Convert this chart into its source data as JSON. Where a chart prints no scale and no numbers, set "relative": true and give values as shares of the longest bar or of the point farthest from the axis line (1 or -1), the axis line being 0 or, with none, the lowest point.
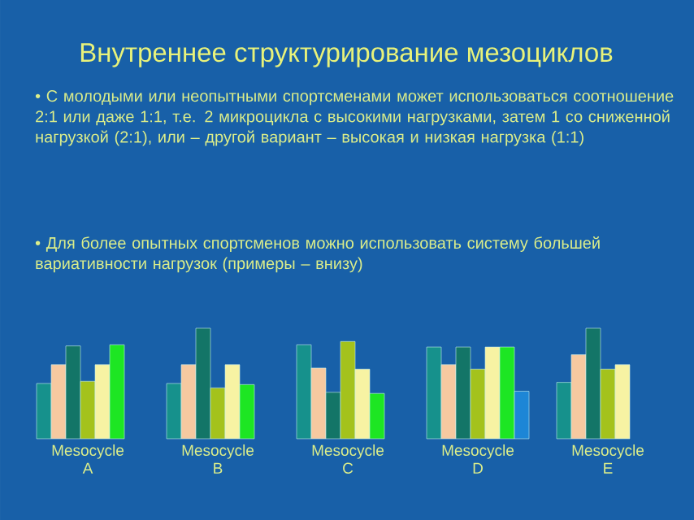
{
  "chart_data": {
    "type": "bar",
    "title": "Внутреннее структурирование мезоциклов",
    "annotations": [
      "• С молодыми или неопытными спортсменами может использоваться соотношение 2:1 или даже 1:1, т.е. 2 микроцикла с высокими нагрузками, затем 1 со сниженной нагрузкой (2:1), или – другой вариант – высокая и низкая нагрузка (1:1)",
      "• Для более опытных спортсменов можно использовать систему большей вариативности нагрузок (примеры – внизу)"
    ],
    "categories": [
      "Mesocycle A",
      "Mesocycle B",
      "Mesocycle C",
      "Mesocycle D",
      "Mesocycle E"
    ],
    "relative": true,
    "series": [
      {
        "color": "#16918c",
        "values": [
          0.5,
          0.5,
          0.85,
          0.83,
          0.51
        ]
      },
      {
        "color": "#f6c9a0",
        "values": [
          0.67,
          0.67,
          0.64,
          0.67,
          0.76
        ]
      },
      {
        "color": "#137567",
        "values": [
          0.84,
          1,
          0.42,
          0.83,
          1
        ]
      },
      {
        "color": "#a4c21c",
        "values": [
          0.52,
          0.46,
          0.88,
          0.63,
          0.63
        ]
      },
      {
        "color": "#f7f3a3",
        "values": [
          0.67,
          0.67,
          0.63,
          0.83,
          0.67
        ]
      },
      {
        "color": "#1de623",
        "values": [
          0.85,
          0.49,
          0.41,
          0.83,
          null
        ]
      },
      {
        "color": "#1d86d6",
        "values": [
          null,
          null,
          null,
          0.43,
          null
        ]
      }
    ]
  }
}
